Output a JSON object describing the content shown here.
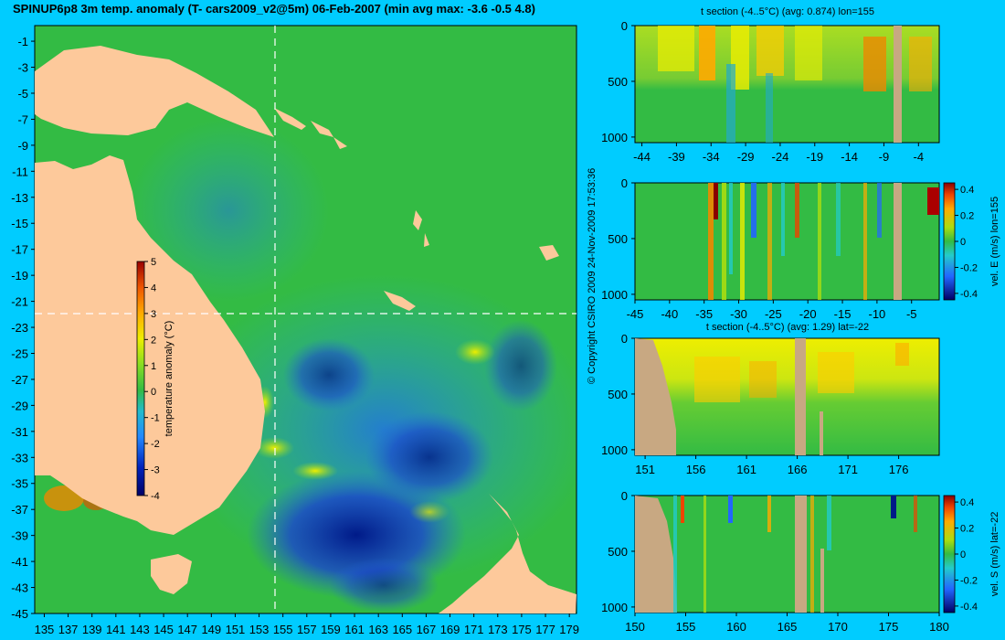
{
  "title": "SPINUP6p8 3m temp. anomaly (T- cars2009_v2@5m) 06-Feb-2007 (min avg max: -3.6 -0.5 4.8)",
  "copyright": "© Copyright CSIRO 2009   24-Nov-2009 17:53:36",
  "colors": {
    "background": "#00ccff",
    "land": "#fdc99b",
    "section_land": "#c8a882",
    "ocean_base": "#33bb44",
    "cold": "#1133bb",
    "warm": "#ee8800",
    "crosshair": "#ffffff"
  },
  "chart_data": [
    {
      "id": "map",
      "type": "heatmap",
      "title": "SPINUP6p8 3m temp. anomaly (T- cars2009_v2@5m) 06-Feb-2007 (min avg max: -3.6 -0.5 4.8)",
      "x_ticks": [
        "135",
        "137",
        "139",
        "141",
        "143",
        "145",
        "147",
        "149",
        "151",
        "153",
        "155",
        "157",
        "159",
        "161",
        "163",
        "165",
        "167",
        "169",
        "171",
        "173",
        "175",
        "177",
        "179"
      ],
      "y_ticks": [
        "-1",
        "-3",
        "-5",
        "-7",
        "-9",
        "-11",
        "-13",
        "-15",
        "-17",
        "-19",
        "-21",
        "-23",
        "-25",
        "-27",
        "-29",
        "-31",
        "-33",
        "-35",
        "-37",
        "-39",
        "-41",
        "-43",
        "-45"
      ],
      "xlim": [
        134.2,
        179.6
      ],
      "ylim": [
        -45,
        0.2
      ],
      "crosshair": {
        "lon": 155,
        "lat": -22
      },
      "colorbar": {
        "label": "temperature anomaly (°C)",
        "ticks": [
          "5",
          "4",
          "3",
          "2",
          "1",
          "0",
          "-1",
          "-2",
          "-3",
          "-4"
        ],
        "range": [
          -4,
          5
        ]
      }
    },
    {
      "id": "t-section-lon",
      "type": "heatmap",
      "title": "t section (-4..5°C) (avg: 0.874) lon=155",
      "x_ticks": [
        "-44",
        "-39",
        "-34",
        "-29",
        "-24",
        "-19",
        "-14",
        "-9",
        "-4"
      ],
      "y_ticks": [
        "0",
        "500",
        "1000"
      ],
      "xlim": [
        -45,
        -1
      ],
      "ylim": [
        1050,
        0
      ]
    },
    {
      "id": "vel-e-section",
      "type": "heatmap",
      "title": "",
      "x_ticks": [
        "-45",
        "-40",
        "-35",
        "-30",
        "-25",
        "-20",
        "-15",
        "-10",
        "-5"
      ],
      "y_ticks": [
        "0",
        "500",
        "1000"
      ],
      "xlim": [
        -45,
        -1
      ],
      "ylim": [
        1050,
        0
      ],
      "colorbar": {
        "label": "vel. E (m/s) lon=155",
        "ticks": [
          "0.4",
          "0.2",
          "0",
          "-0.2",
          "-0.4"
        ],
        "range": [
          -0.45,
          0.45
        ]
      }
    },
    {
      "id": "t-section-lat",
      "type": "heatmap",
      "title": "t section (-4..5°C) (avg: 1.29) lat=-22",
      "x_ticks": [
        "151",
        "156",
        "161",
        "166",
        "171",
        "176"
      ],
      "y_ticks": [
        "0",
        "500",
        "1000"
      ],
      "xlim": [
        150,
        180
      ],
      "ylim": [
        1050,
        0
      ]
    },
    {
      "id": "vel-s-section",
      "type": "heatmap",
      "title": "",
      "x_ticks": [
        "150",
        "155",
        "160",
        "165",
        "170",
        "175",
        "180"
      ],
      "y_ticks": [
        "0",
        "500",
        "1000"
      ],
      "xlim": [
        150,
        180
      ],
      "ylim": [
        1050,
        0
      ],
      "colorbar": {
        "label": "vel. S (m/s) lat=-22",
        "ticks": [
          "0.4",
          "0.2",
          "0",
          "-0.2",
          "-0.4"
        ],
        "range": [
          -0.45,
          0.45
        ]
      }
    }
  ]
}
